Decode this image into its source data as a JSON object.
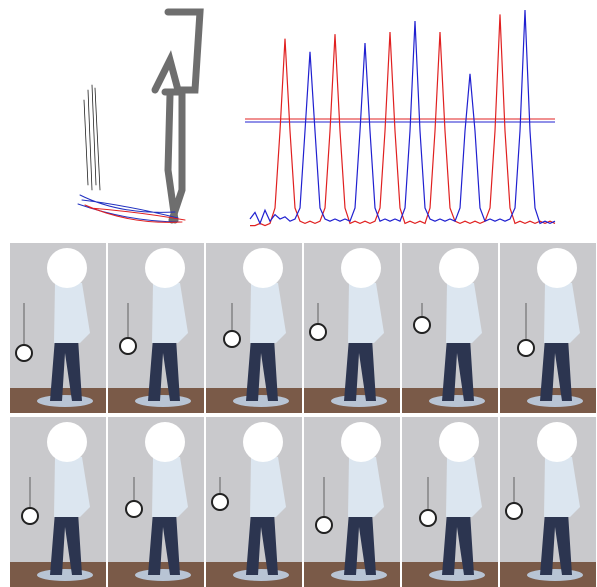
{
  "chart_data": {
    "type": "line",
    "ylim": [
      0,
      100
    ],
    "series": [
      {
        "color": "#e02020",
        "values": [
          2,
          2,
          3,
          2,
          3,
          10,
          45,
          87,
          45,
          10,
          4,
          3,
          4,
          3,
          4,
          10,
          45,
          89,
          45,
          10,
          3,
          4,
          3,
          4,
          3,
          4,
          10,
          45,
          90,
          45,
          10,
          3,
          4,
          3,
          4,
          3,
          10,
          45,
          90,
          45,
          10,
          4,
          3,
          4,
          3,
          4,
          3,
          4,
          10,
          45,
          98,
          45,
          10,
          3,
          4,
          3,
          4,
          3,
          4,
          3,
          4,
          3
        ]
      },
      {
        "color": "#2020d0",
        "values": [
          5,
          8,
          3,
          9,
          4,
          7,
          5,
          6,
          4,
          5,
          10,
          45,
          81,
          45,
          10,
          5,
          4,
          5,
          4,
          5,
          4,
          10,
          45,
          85,
          45,
          10,
          4,
          5,
          4,
          5,
          4,
          10,
          45,
          95,
          45,
          10,
          5,
          4,
          5,
          4,
          5,
          4,
          10,
          45,
          71,
          45,
          10,
          4,
          5,
          4,
          5,
          4,
          5,
          10,
          45,
          100,
          45,
          10,
          3,
          4,
          3,
          4
        ]
      }
    ]
  }
}
